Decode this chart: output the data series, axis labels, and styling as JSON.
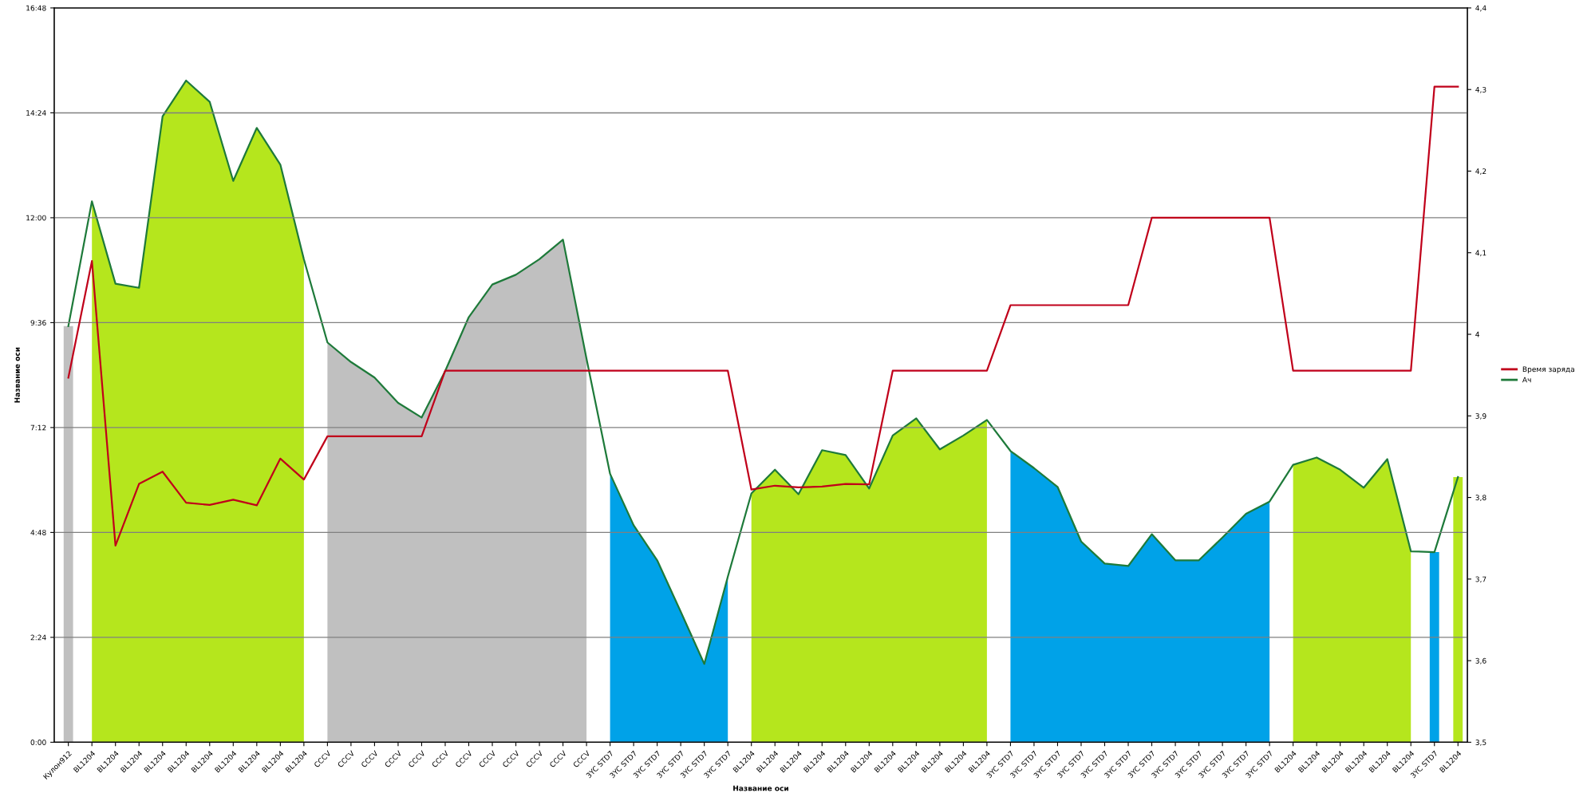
{
  "chart_data": {
    "type": "line",
    "xlabel": "Название оси",
    "ylabel": "Название оси",
    "categories": [
      "Кулон912",
      "BL1204",
      "BL1204",
      "BL1204",
      "BL1204",
      "BL1204",
      "BL1204",
      "BL1204",
      "BL1204",
      "BL1204",
      "BL1204",
      "CCCV",
      "CCCV",
      "CCCV",
      "CCCV",
      "CCCV",
      "CCCV",
      "CCCV",
      "CCCV",
      "CCCV",
      "CCCV",
      "CCCV",
      "CCCV",
      "3YC STD7",
      "3YC STD7",
      "3YC STD7",
      "3YC STD7",
      "3YC STD7",
      "3YC STD7",
      "BL1204",
      "BL1204",
      "BL1204",
      "BL1204",
      "BL1204",
      "BL1204",
      "BL1204",
      "BL1204",
      "BL1204",
      "BL1204",
      "BL1204",
      "3YC STD7",
      "3YC STD7",
      "3YC STD7",
      "3YC STD7",
      "3YC STD7",
      "3YC STD7",
      "3YC STD7",
      "3YC STD7",
      "3YC STD7",
      "3YC STD7",
      "3YC STD7",
      "3YC STD7",
      "BL1204",
      "BL1204",
      "BL1204",
      "BL1204",
      "BL1204",
      "BL1204",
      "3YC STD7",
      "BL1204"
    ],
    "series": [
      {
        "type": "bar",
        "axis": "y2",
        "color": "#c0c0c0",
        "values": [
          4.01,
          null,
          null,
          null,
          null,
          null,
          null,
          null,
          null,
          null,
          null,
          null,
          null,
          null,
          null,
          null,
          null,
          null,
          null,
          null,
          null,
          null,
          null,
          null,
          null,
          null,
          null,
          null,
          null,
          null,
          null,
          null,
          null,
          null,
          null,
          null,
          null,
          null,
          null,
          null,
          null,
          null,
          null,
          null,
          null,
          null,
          null,
          null,
          null,
          null,
          null,
          null,
          null,
          null,
          null,
          null,
          null,
          null,
          null,
          null
        ]
      },
      {
        "type": "bar",
        "axis": "y2",
        "color": "#00a2e8",
        "values": [
          null,
          null,
          null,
          null,
          null,
          null,
          null,
          null,
          null,
          null,
          null,
          null,
          null,
          null,
          null,
          null,
          null,
          null,
          null,
          null,
          null,
          null,
          null,
          null,
          null,
          null,
          null,
          null,
          null,
          null,
          null,
          null,
          null,
          null,
          null,
          null,
          null,
          null,
          null,
          null,
          null,
          null,
          null,
          null,
          null,
          null,
          null,
          null,
          null,
          null,
          null,
          null,
          null,
          null,
          null,
          null,
          null,
          null,
          3.733,
          null
        ]
      },
      {
        "type": "bar",
        "axis": "y2",
        "color": "#b5e61d",
        "values": [
          null,
          null,
          null,
          null,
          null,
          null,
          null,
          null,
          null,
          null,
          null,
          null,
          null,
          null,
          null,
          null,
          null,
          null,
          null,
          null,
          null,
          null,
          null,
          null,
          null,
          null,
          null,
          null,
          null,
          null,
          null,
          null,
          null,
          null,
          null,
          null,
          null,
          null,
          null,
          null,
          null,
          null,
          null,
          null,
          null,
          null,
          null,
          null,
          null,
          null,
          null,
          null,
          null,
          null,
          null,
          null,
          null,
          null,
          null,
          3.825
        ]
      },
      {
        "type": "area",
        "axis": "y2",
        "color": "#c0c0c0",
        "values": [
          null,
          null,
          null,
          null,
          null,
          null,
          null,
          null,
          null,
          null,
          null,
          3.99,
          3.966,
          3.947,
          3.916,
          3.898,
          3.955,
          4.021,
          4.061,
          4.073,
          4.092,
          4.116,
          3.97,
          null,
          null,
          null,
          null,
          null,
          null,
          null,
          null,
          null,
          null,
          null,
          null,
          null,
          null,
          null,
          null,
          null,
          null,
          null,
          null,
          null,
          null,
          null,
          null,
          null,
          null,
          null,
          null,
          null,
          null,
          null,
          null,
          null,
          null,
          null,
          null,
          null
        ]
      },
      {
        "type": "area",
        "axis": "y2",
        "color": "#b5e61d",
        "values": [
          null,
          4.163,
          4.062,
          4.057,
          4.267,
          4.311,
          4.285,
          4.188,
          4.253,
          4.208,
          4.092,
          null,
          null,
          null,
          null,
          null,
          null,
          null,
          null,
          null,
          null,
          null,
          null,
          null,
          null,
          null,
          null,
          null,
          null,
          3.805,
          3.834,
          3.804,
          3.858,
          3.852,
          3.811,
          3.876,
          3.897,
          3.859,
          3.876,
          3.895,
          null,
          null,
          null,
          null,
          null,
          null,
          null,
          null,
          null,
          null,
          null,
          null,
          3.84,
          3.849,
          3.834,
          3.812,
          3.847,
          3.734,
          null,
          null
        ]
      },
      {
        "type": "area",
        "axis": "y2",
        "color": "#00a2e8",
        "values": [
          null,
          null,
          null,
          null,
          null,
          null,
          null,
          null,
          null,
          null,
          null,
          null,
          null,
          null,
          null,
          null,
          null,
          null,
          null,
          null,
          null,
          null,
          null,
          3.829,
          3.766,
          3.723,
          3.66,
          3.596,
          3.703,
          null,
          null,
          null,
          null,
          null,
          null,
          null,
          null,
          null,
          null,
          null,
          3.857,
          3.836,
          3.813,
          3.746,
          3.719,
          3.716,
          3.755,
          3.723,
          3.723,
          3.751,
          3.78,
          3.795,
          null,
          null,
          null,
          null,
          null,
          null,
          null,
          null
        ]
      },
      {
        "name": "Время заряда",
        "type": "line",
        "color": "#c0001a",
        "values": [
          8.34,
          11.01,
          4.5,
          5.91,
          6.19,
          5.48,
          5.43,
          5.55,
          5.42,
          6.49,
          6.01,
          7.0,
          7.0,
          7.0,
          7.0,
          7.0,
          8.5,
          8.5,
          8.5,
          8.5,
          8.5,
          8.5,
          8.5,
          8.5,
          8.5,
          8.5,
          8.5,
          8.5,
          8.5,
          5.78,
          5.87,
          5.83,
          5.85,
          5.91,
          5.9,
          8.5,
          8.5,
          8.5,
          8.5,
          8.5,
          10.0,
          10.0,
          10.0,
          10.0,
          10.0,
          10.0,
          12.0,
          12.0,
          12.0,
          12.0,
          12.0,
          12.0,
          8.5,
          8.5,
          8.5,
          8.5,
          8.5,
          8.5,
          15.0,
          15.0
        ]
      },
      {
        "name": "Ач",
        "axis": "y2",
        "color": "#1e7a3a",
        "values": [
          4.01,
          4.163,
          4.062,
          4.057,
          4.267,
          4.311,
          4.285,
          4.188,
          4.253,
          4.208,
          4.092,
          3.99,
          3.966,
          3.947,
          3.916,
          3.898,
          3.955,
          4.021,
          4.061,
          4.073,
          4.092,
          4.116,
          3.97,
          3.829,
          3.766,
          3.723,
          3.66,
          3.596,
          3.703,
          3.805,
          3.834,
          3.804,
          3.858,
          3.852,
          3.811,
          3.876,
          3.897,
          3.859,
          3.876,
          3.895,
          3.857,
          3.836,
          3.813,
          3.746,
          3.719,
          3.716,
          3.755,
          3.723,
          3.723,
          3.751,
          3.78,
          3.795,
          3.84,
          3.849,
          3.834,
          3.812,
          3.847,
          3.734,
          3.733,
          3.825
        ]
      }
    ],
    "ylim": [
      0,
      16.8
    ],
    "yticks": [
      {
        "value": 0,
        "label": "0:00"
      },
      {
        "value": 2.4,
        "label": "2:24"
      },
      {
        "value": 4.8,
        "label": "4:48"
      },
      {
        "value": 7.2,
        "label": "7:12"
      },
      {
        "value": 9.6,
        "label": "9:36"
      },
      {
        "value": 12,
        "label": "12:00"
      },
      {
        "value": 14.4,
        "label": "14:24"
      },
      {
        "value": 16.8,
        "label": "16:48"
      }
    ],
    "y2lim": [
      3.5,
      4.4
    ],
    "y2ticks": [
      {
        "value": 3.5,
        "label": "3,5"
      },
      {
        "value": 3.6,
        "label": "3,6"
      },
      {
        "value": 3.7,
        "label": "3,7"
      },
      {
        "value": 3.8,
        "label": "3,8"
      },
      {
        "value": 3.9,
        "label": "3,9"
      },
      4,
      {
        "value": 4.1,
        "label": "4,1"
      },
      {
        "value": 4.2,
        "label": "4,2"
      },
      {
        "value": 4.3,
        "label": "4,3"
      },
      {
        "value": 4.4,
        "label": "4,4"
      }
    ],
    "grid": "y",
    "legend": "right"
  }
}
